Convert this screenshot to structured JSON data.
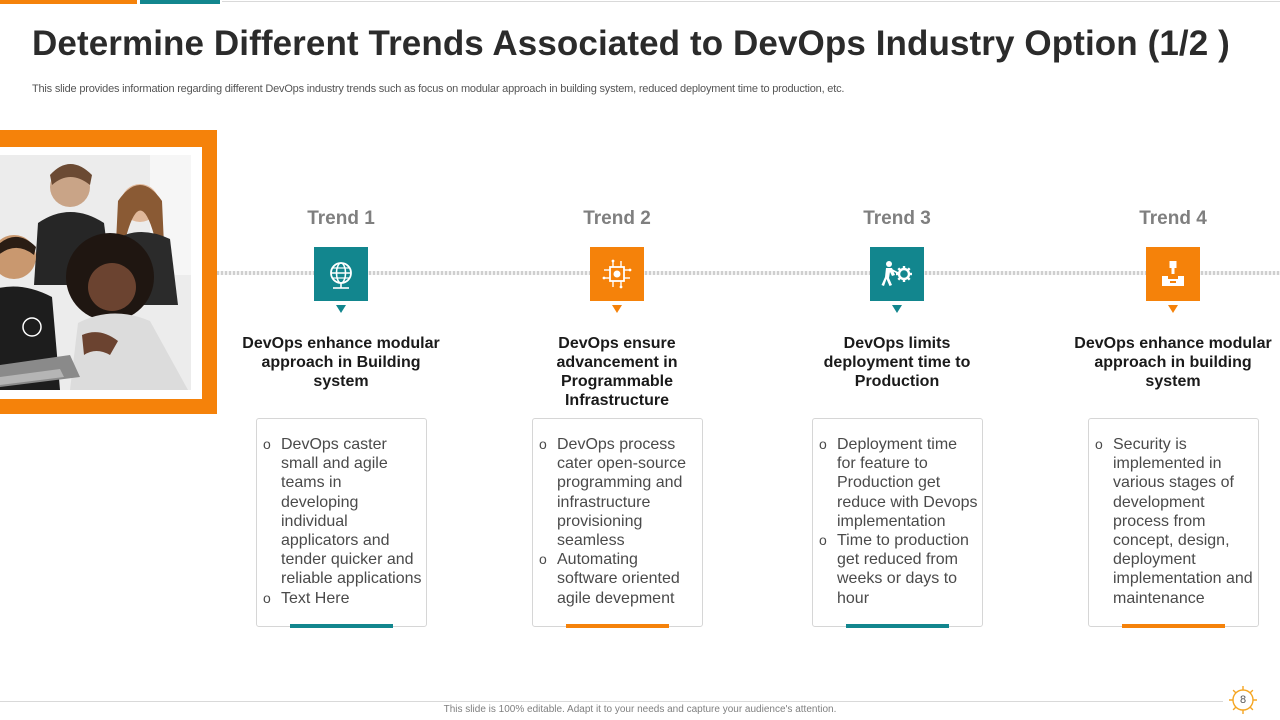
{
  "slide": {
    "title": "Determine Different Trends Associated to DevOps Industry Option (1/2 )",
    "subtitle": "This slide provides information regarding different DevOps industry trends such as focus on modular approach in building system, reduced deployment time to production, etc.",
    "footer": "This slide is 100% editable. Adapt it to your needs and capture your audience's attention.",
    "page_number": "8"
  },
  "colors": {
    "orange": "#f5820a",
    "teal": "#12868e"
  },
  "trends": [
    {
      "label": "Trend 1",
      "icon": "globe-network-icon",
      "heading": "DevOps enhance modular approach in Building system",
      "bullets": [
        "DevOps caster small and agile teams in developing individual applicators and tender quicker and reliable applications",
        "Text Here"
      ]
    },
    {
      "label": "Trend 2",
      "icon": "circuit-chip-icon",
      "heading": "DevOps ensure advancement in Programmable Infrastructure",
      "bullets": [
        "DevOps process cater open-source programming and infrastructure provisioning seamless",
        "Automating software oriented agile devepment"
      ]
    },
    {
      "label": "Trend 3",
      "icon": "person-gear-icon",
      "heading": "DevOps limits deployment time to Production",
      "bullets": [
        "Deployment time for feature to Production get reduce with Devops implementation",
        "Time to production get reduced from weeks or days to hour"
      ]
    },
    {
      "label": "Trend 4",
      "icon": "security-hand-icon",
      "heading": "DevOps enhance modular approach in building system",
      "bullets": [
        "Security is implemented in various stages of development process from concept, design, deployment implementation and maintenance"
      ]
    }
  ]
}
